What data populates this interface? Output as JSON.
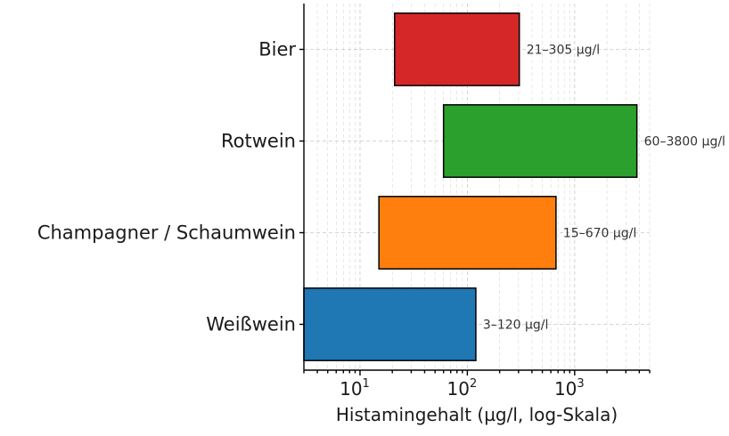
{
  "chart_data": {
    "type": "bar",
    "orientation": "horizontal-range",
    "xlabel": "Histamingehalt (µg/l, log-Skala)",
    "ylabel": "",
    "title": "",
    "xscale": "log",
    "xlim": [
      3,
      5000
    ],
    "grid": true,
    "categories": [
      "Weißwein",
      "Champagner / Schaumwein",
      "Rotwein",
      "Bier"
    ],
    "ranges": [
      {
        "category": "Weißwein",
        "min": 3,
        "max": 120,
        "label": "3–120 µg/l",
        "color": "#1f77b4"
      },
      {
        "category": "Champagner / Schaumwein",
        "min": 15,
        "max": 670,
        "label": "15–670 µg/l",
        "color": "#ff7f0e"
      },
      {
        "category": "Rotwein",
        "min": 60,
        "max": 3800,
        "label": "60–3800 µg/l",
        "color": "#2ca02c"
      },
      {
        "category": "Bier",
        "min": 21,
        "max": 305,
        "label": "21–305 µg/l",
        "color": "#d62728"
      }
    ],
    "xticks": [
      {
        "base": "10",
        "exp": "1",
        "value": 10
      },
      {
        "base": "10",
        "exp": "2",
        "value": 100
      },
      {
        "base": "10",
        "exp": "3",
        "value": 1000
      }
    ]
  }
}
